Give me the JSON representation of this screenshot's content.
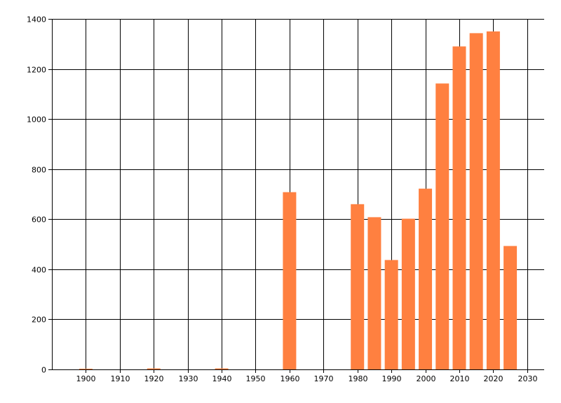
{
  "chart_data": {
    "type": "bar",
    "title": "",
    "xlabel": "",
    "ylabel": "",
    "x": [
      1900,
      1920,
      1940,
      1960,
      1980,
      1985,
      1990,
      1995,
      2000,
      2005,
      2010,
      2015,
      2020,
      2025
    ],
    "values": [
      2,
      4,
      4,
      708,
      660,
      608,
      437,
      602,
      722,
      1142,
      1290,
      1343,
      1350,
      493
    ],
    "xlim": [
      1890,
      2035
    ],
    "ylim": [
      0,
      1400
    ],
    "x_ticks": [
      1900,
      1910,
      1920,
      1930,
      1940,
      1950,
      1960,
      1970,
      1980,
      1990,
      2000,
      2010,
      2020,
      2030
    ],
    "y_ticks": [
      0,
      200,
      400,
      600,
      800,
      1000,
      1200,
      1400
    ],
    "grid": true,
    "legend": "none",
    "bar_color": "#FF8040",
    "grid_color": "#000000"
  }
}
